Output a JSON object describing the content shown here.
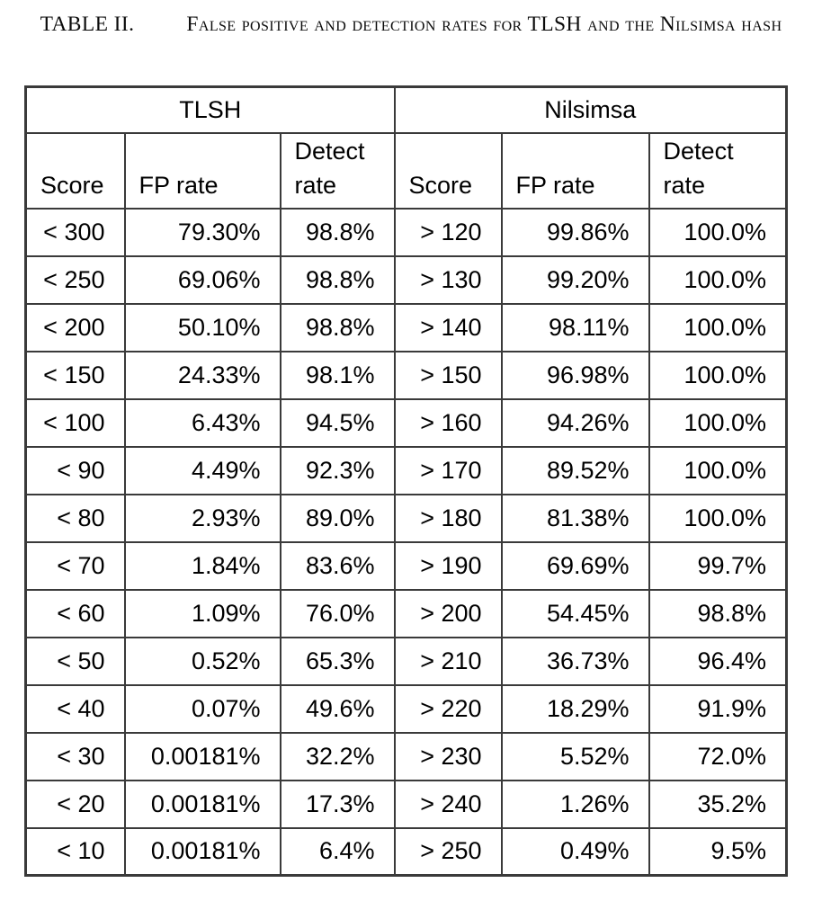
{
  "caption": {
    "label": "TABLE II.",
    "text": "False positive and detection rates for TLSH and the Nilsimsa hash"
  },
  "chart_data": {
    "type": "table",
    "group_headers": [
      "TLSH",
      "Nilsimsa"
    ],
    "column_headers": [
      "Score",
      "FP rate",
      "Detect rate",
      "Score",
      "FP rate",
      "Detect rate"
    ],
    "rows": [
      [
        "< 300",
        "79.30%",
        "98.8%",
        "> 120",
        "99.86%",
        "100.0%"
      ],
      [
        "< 250",
        "69.06%",
        "98.8%",
        "> 130",
        "99.20%",
        "100.0%"
      ],
      [
        "< 200",
        "50.10%",
        "98.8%",
        "> 140",
        "98.11%",
        "100.0%"
      ],
      [
        "< 150",
        "24.33%",
        "98.1%",
        "> 150",
        "96.98%",
        "100.0%"
      ],
      [
        "< 100",
        "6.43%",
        "94.5%",
        "> 160",
        "94.26%",
        "100.0%"
      ],
      [
        "< 90",
        "4.49%",
        "92.3%",
        "> 170",
        "89.52%",
        "100.0%"
      ],
      [
        "< 80",
        "2.93%",
        "89.0%",
        "> 180",
        "81.38%",
        "100.0%"
      ],
      [
        "< 70",
        "1.84%",
        "83.6%",
        "> 190",
        "69.69%",
        "99.7%"
      ],
      [
        "< 60",
        "1.09%",
        "76.0%",
        "> 200",
        "54.45%",
        "98.8%"
      ],
      [
        "< 50",
        "0.52%",
        "65.3%",
        "> 210",
        "36.73%",
        "96.4%"
      ],
      [
        "< 40",
        "0.07%",
        "49.6%",
        "> 220",
        "18.29%",
        "91.9%"
      ],
      [
        "< 30",
        "0.00181%",
        "32.2%",
        "> 230",
        "5.52%",
        "72.0%"
      ],
      [
        "< 20",
        "0.00181%",
        "17.3%",
        "> 240",
        "1.26%",
        "35.2%"
      ],
      [
        "< 10",
        "0.00181%",
        "6.4%",
        "> 250",
        "0.49%",
        "9.5%"
      ]
    ],
    "border_color": "#3a3a3a",
    "text_color": "#000000",
    "background_color": "#ffffff"
  }
}
